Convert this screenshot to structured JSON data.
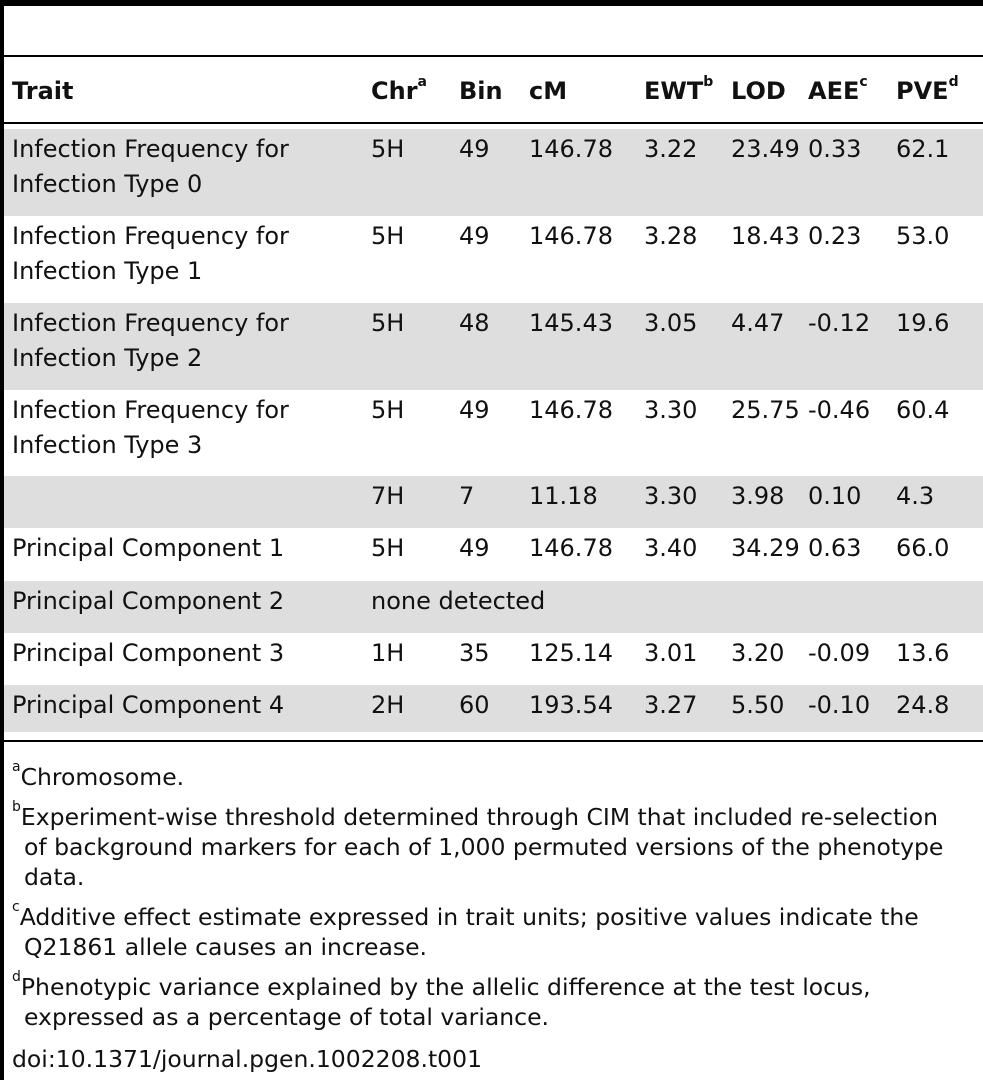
{
  "table": {
    "headers": {
      "trait": "Trait",
      "chr": "Chr",
      "chr_note": "a",
      "bin": "Bin",
      "cm": "cM",
      "ewt": "EWT",
      "ewt_note": "b",
      "lod": "LOD",
      "aee": "AEE",
      "aee_note": "c",
      "pve": "PVE",
      "pve_note": "d"
    },
    "rows": [
      {
        "trait": "Infection Frequency for Infection Type 0",
        "chr": "5H",
        "bin": "49",
        "cm": "146.78",
        "ewt": "3.22",
        "lod": "23.49",
        "aee": "0.33",
        "pve": "62.1"
      },
      {
        "trait": "Infection Frequency for Infection Type 1",
        "chr": "5H",
        "bin": "49",
        "cm": "146.78",
        "ewt": "3.28",
        "lod": "18.43",
        "aee": "0.23",
        "pve": "53.0"
      },
      {
        "trait": "Infection Frequency for Infection Type 2",
        "chr": "5H",
        "bin": "48",
        "cm": "145.43",
        "ewt": "3.05",
        "lod": "4.47",
        "aee": "-0.12",
        "pve": "19.6"
      },
      {
        "trait": "Infection Frequency for Infection Type 3",
        "chr": "5H",
        "bin": "49",
        "cm": "146.78",
        "ewt": "3.30",
        "lod": "25.75",
        "aee": "-0.46",
        "pve": "60.4"
      },
      {
        "trait": "",
        "chr": "7H",
        "bin": "7",
        "cm": "11.18",
        "ewt": "3.30",
        "lod": "3.98",
        "aee": "0.10",
        "pve": "4.3"
      },
      {
        "trait": "Principal Component 1",
        "chr": "5H",
        "bin": "49",
        "cm": "146.78",
        "ewt": "3.40",
        "lod": "34.29",
        "aee": "0.63",
        "pve": "66.0"
      },
      {
        "trait": "Principal Component 2",
        "chr": "none detected",
        "bin": "",
        "cm": "",
        "ewt": "",
        "lod": "",
        "aee": "",
        "pve": ""
      },
      {
        "trait": "Principal Component 3",
        "chr": "1H",
        "bin": "35",
        "cm": "125.14",
        "ewt": "3.01",
        "lod": "3.20",
        "aee": "-0.09",
        "pve": "13.6"
      },
      {
        "trait": "Principal Component 4",
        "chr": "2H",
        "bin": "60",
        "cm": "193.54",
        "ewt": "3.27",
        "lod": "5.50",
        "aee": "-0.10",
        "pve": "24.8"
      }
    ]
  },
  "footnotes": [
    {
      "mark": "a",
      "lines": [
        "Chromosome."
      ]
    },
    {
      "mark": "b",
      "lines": [
        "Experiment-wise threshold determined through CIM that included re-selection",
        "of background markers for each of 1,000 permuted versions of the phenotype",
        "data."
      ]
    },
    {
      "mark": "c",
      "lines": [
        "Additive effect estimate expressed in trait units; positive values indicate the",
        "Q21861 allele causes an increase."
      ]
    },
    {
      "mark": "d",
      "lines": [
        "Phenotypic variance explained by the allelic difference at the test locus,",
        "expressed as a percentage of total variance."
      ]
    }
  ],
  "doi": "doi:10.1371/journal.pgen.1002208.t001"
}
